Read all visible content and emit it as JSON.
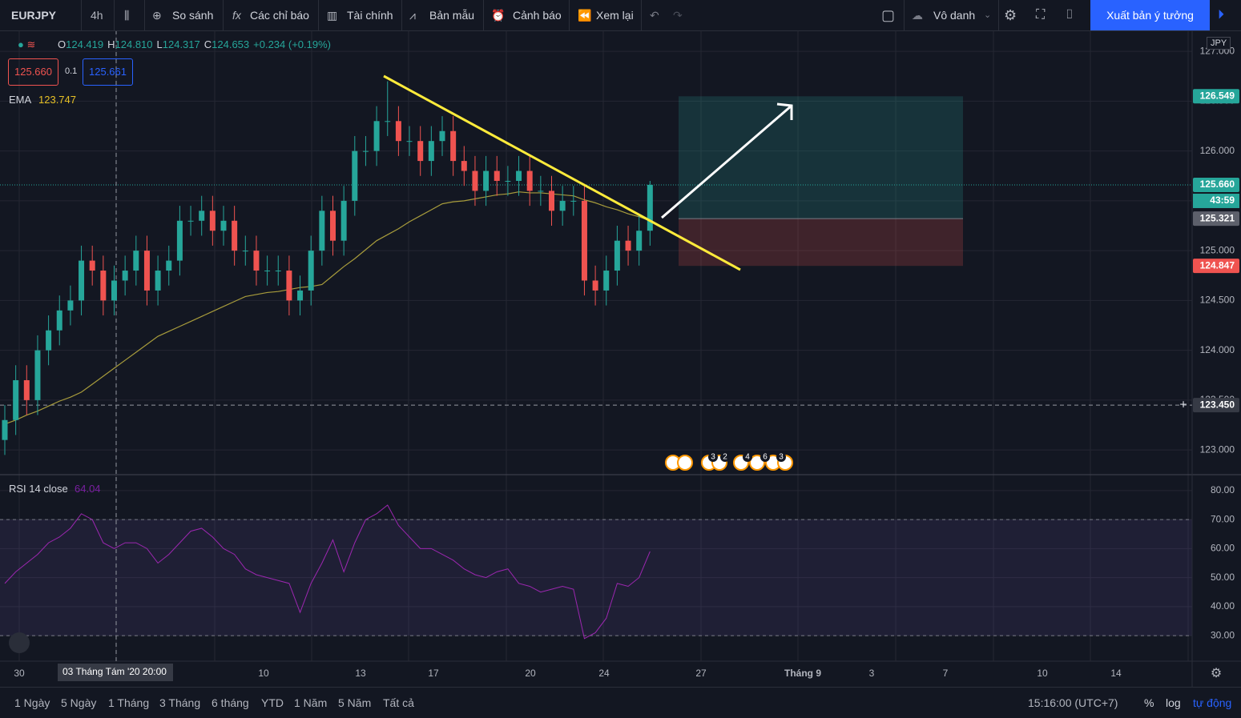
{
  "toolbar": {
    "symbol": "EURJPY",
    "interval": "4h",
    "items": [
      "So sánh",
      "Các chỉ báo",
      "Tài chính",
      "Bản mẫu",
      "Cảnh báo",
      "Xem lại"
    ],
    "layout_name": "Vô danh",
    "publish": "Xuất bản ý tưởng"
  },
  "legend": {
    "ohlc": [
      {
        "key": "O",
        "value": "124.419"
      },
      {
        "key": "H",
        "value": "124.810"
      },
      {
        "key": "L",
        "value": "124.317"
      },
      {
        "key": "C",
        "value": "124.653"
      }
    ],
    "change": "+0.234 (+0.19%)",
    "sell": "125.660",
    "spread": "0.1",
    "buy": "125.661",
    "ema_label": "EMA",
    "ema_value": "123.747"
  },
  "currency": "JPY",
  "chart_data": {
    "type": "candlestick",
    "open": [
      123.1,
      123.3,
      123.7,
      123.5,
      124.0,
      124.2,
      124.4,
      124.5,
      124.9,
      124.8,
      124.5,
      124.7,
      124.8,
      125.0,
      124.6,
      124.8,
      124.9,
      125.3,
      125.3,
      125.4,
      125.2,
      125.3,
      125.0,
      125.0,
      124.8,
      124.8,
      124.8,
      124.5,
      124.6,
      125.0,
      125.4,
      125.1,
      125.5,
      126.0,
      126.0,
      126.3,
      126.3,
      126.1,
      126.1,
      125.9,
      126.1,
      126.2,
      125.9,
      125.8,
      125.6,
      125.8,
      125.7,
      125.7,
      125.8,
      125.6,
      125.6,
      125.4,
      125.5,
      125.5,
      124.7,
      124.6,
      124.8,
      125.1,
      125.0,
      125.2
    ],
    "high": [
      123.45,
      123.85,
      123.85,
      124.15,
      124.35,
      124.55,
      124.65,
      125.05,
      125.05,
      124.95,
      124.85,
      124.95,
      125.15,
      125.15,
      124.95,
      125.05,
      125.45,
      125.45,
      125.55,
      125.55,
      125.45,
      125.45,
      125.15,
      125.15,
      124.95,
      124.95,
      124.95,
      124.75,
      125.15,
      125.55,
      125.55,
      125.65,
      126.15,
      126.15,
      126.45,
      126.7,
      126.45,
      126.25,
      126.25,
      126.25,
      126.35,
      126.35,
      126.05,
      125.95,
      125.95,
      125.95,
      125.85,
      125.95,
      125.95,
      125.75,
      125.75,
      125.65,
      125.65,
      125.65,
      124.85,
      124.95,
      125.25,
      125.25,
      125.35,
      125.7
    ],
    "low": [
      122.95,
      123.15,
      123.35,
      123.35,
      123.85,
      124.05,
      124.25,
      124.35,
      124.65,
      124.35,
      124.35,
      124.55,
      124.65,
      124.45,
      124.45,
      124.65,
      124.75,
      125.15,
      125.15,
      125.05,
      125.05,
      124.85,
      124.85,
      124.65,
      124.65,
      124.65,
      124.35,
      124.35,
      124.45,
      124.85,
      124.95,
      124.95,
      125.35,
      125.85,
      125.85,
      126.15,
      125.95,
      125.95,
      125.75,
      125.75,
      125.95,
      125.75,
      125.65,
      125.45,
      125.45,
      125.55,
      125.55,
      125.55,
      125.45,
      125.45,
      125.25,
      125.25,
      125.35,
      124.55,
      124.45,
      124.45,
      124.65,
      124.85,
      124.85,
      125.05
    ],
    "close": [
      123.3,
      123.7,
      123.5,
      124.0,
      124.2,
      124.4,
      124.5,
      124.9,
      124.8,
      124.5,
      124.7,
      124.8,
      125.0,
      124.6,
      124.8,
      124.9,
      125.3,
      125.3,
      125.4,
      125.2,
      125.3,
      125.0,
      125.0,
      124.8,
      124.8,
      124.8,
      124.5,
      124.6,
      125.0,
      125.4,
      125.1,
      125.5,
      126.0,
      126.0,
      126.3,
      126.3,
      126.1,
      126.1,
      125.9,
      126.1,
      126.2,
      125.9,
      125.8,
      125.6,
      125.8,
      125.7,
      125.7,
      125.8,
      125.6,
      125.6,
      125.4,
      125.5,
      125.5,
      124.7,
      124.6,
      124.8,
      125.1,
      125.0,
      125.2,
      125.66
    ],
    "ema": [
      123.26,
      123.3,
      123.35,
      123.39,
      123.44,
      123.49,
      123.53,
      123.58,
      123.66,
      123.74,
      123.82,
      123.9,
      123.98,
      124.06,
      124.14,
      124.19,
      124.24,
      124.29,
      124.34,
      124.39,
      124.44,
      124.49,
      124.54,
      124.56,
      124.58,
      124.59,
      124.61,
      124.63,
      124.64,
      124.66,
      124.75,
      124.84,
      124.92,
      125.01,
      125.1,
      125.16,
      125.22,
      125.29,
      125.35,
      125.41,
      125.47,
      125.49,
      125.5,
      125.52,
      125.54,
      125.56,
      125.57,
      125.59,
      125.58,
      125.58,
      125.57,
      125.56,
      125.55,
      125.51,
      125.48,
      125.44,
      125.41,
      125.37,
      125.34,
      125.3
    ],
    "up_color": "#26a69a",
    "down_color": "#ef5350",
    "ema_color": "#a89c3c",
    "ylim": [
      122.76,
      127.21
    ],
    "yticks": [
      {
        "value": 123,
        "label": "123.000"
      },
      {
        "value": 123.5,
        "label": "123.500"
      },
      {
        "value": 124,
        "label": "124.000"
      },
      {
        "value": 124.5,
        "label": "124.500"
      },
      {
        "value": 125,
        "label": "125.000"
      },
      {
        "value": 125.5,
        "label": "125.500"
      },
      {
        "value": 126,
        "label": "126.000"
      },
      {
        "value": 126.5,
        "label": "126.500"
      },
      {
        "value": 127,
        "label": "127.000"
      }
    ],
    "price_tags": [
      {
        "value": 126.549,
        "label": "126.549",
        "color": "#26a69a"
      },
      {
        "value": 125.66,
        "label": "125.660",
        "color": "#26a69a"
      },
      {
        "value": 125.321,
        "label": "125.321",
        "color": "#5d606b"
      },
      {
        "value": 124.847,
        "label": "124.847",
        "color": "#ef5350"
      },
      {
        "value": 123.45,
        "label": "123.450",
        "color": "#363a45"
      }
    ],
    "countdown": "43:59",
    "events": [
      3,
      2,
      4,
      6,
      3
    ],
    "rsi": {
      "label": "RSI 14 close",
      "value": "64.04",
      "color": "#9c27b0",
      "values": [
        48,
        52,
        55,
        58,
        62,
        64,
        67,
        72,
        70,
        62,
        60,
        62,
        62,
        60,
        55,
        58,
        62,
        66,
        67,
        64,
        60,
        58,
        53,
        51,
        50,
        49,
        48,
        38,
        48,
        55,
        63,
        52,
        62,
        70,
        72,
        75,
        68,
        64,
        60,
        60,
        58,
        56,
        53,
        51,
        50,
        52,
        53,
        48,
        47,
        45,
        46,
        47,
        46,
        29,
        31,
        36,
        48,
        47,
        50,
        59
      ],
      "ylim": [
        21.2,
        85.2
      ],
      "yticks": [
        {
          "value": 30,
          "label": "30.00"
        },
        {
          "value": 40,
          "label": "40.00"
        },
        {
          "value": 50,
          "label": "50.00"
        },
        {
          "value": 60,
          "label": "60.00"
        },
        {
          "value": 70,
          "label": "70.00"
        },
        {
          "value": 80,
          "label": "80.00"
        }
      ],
      "bands": [
        70,
        30
      ]
    }
  },
  "time_axis": {
    "labels": [
      "30",
      "10",
      "13",
      "17",
      "20",
      "24",
      "27",
      "Tháng 9",
      "3",
      "7",
      "10",
      "14"
    ],
    "crosshair": "03 Tháng Tám '20   20:00"
  },
  "bottom_bar": {
    "ranges": [
      "1 Ngày",
      "5 Ngày",
      "1 Tháng",
      "3 Tháng",
      "6 tháng",
      "YTD",
      "1 Năm",
      "5 Năm",
      "Tất cả"
    ],
    "clock": "15:16:00 (UTC+7)",
    "percent": "%",
    "log": "log",
    "auto": "tự động"
  }
}
